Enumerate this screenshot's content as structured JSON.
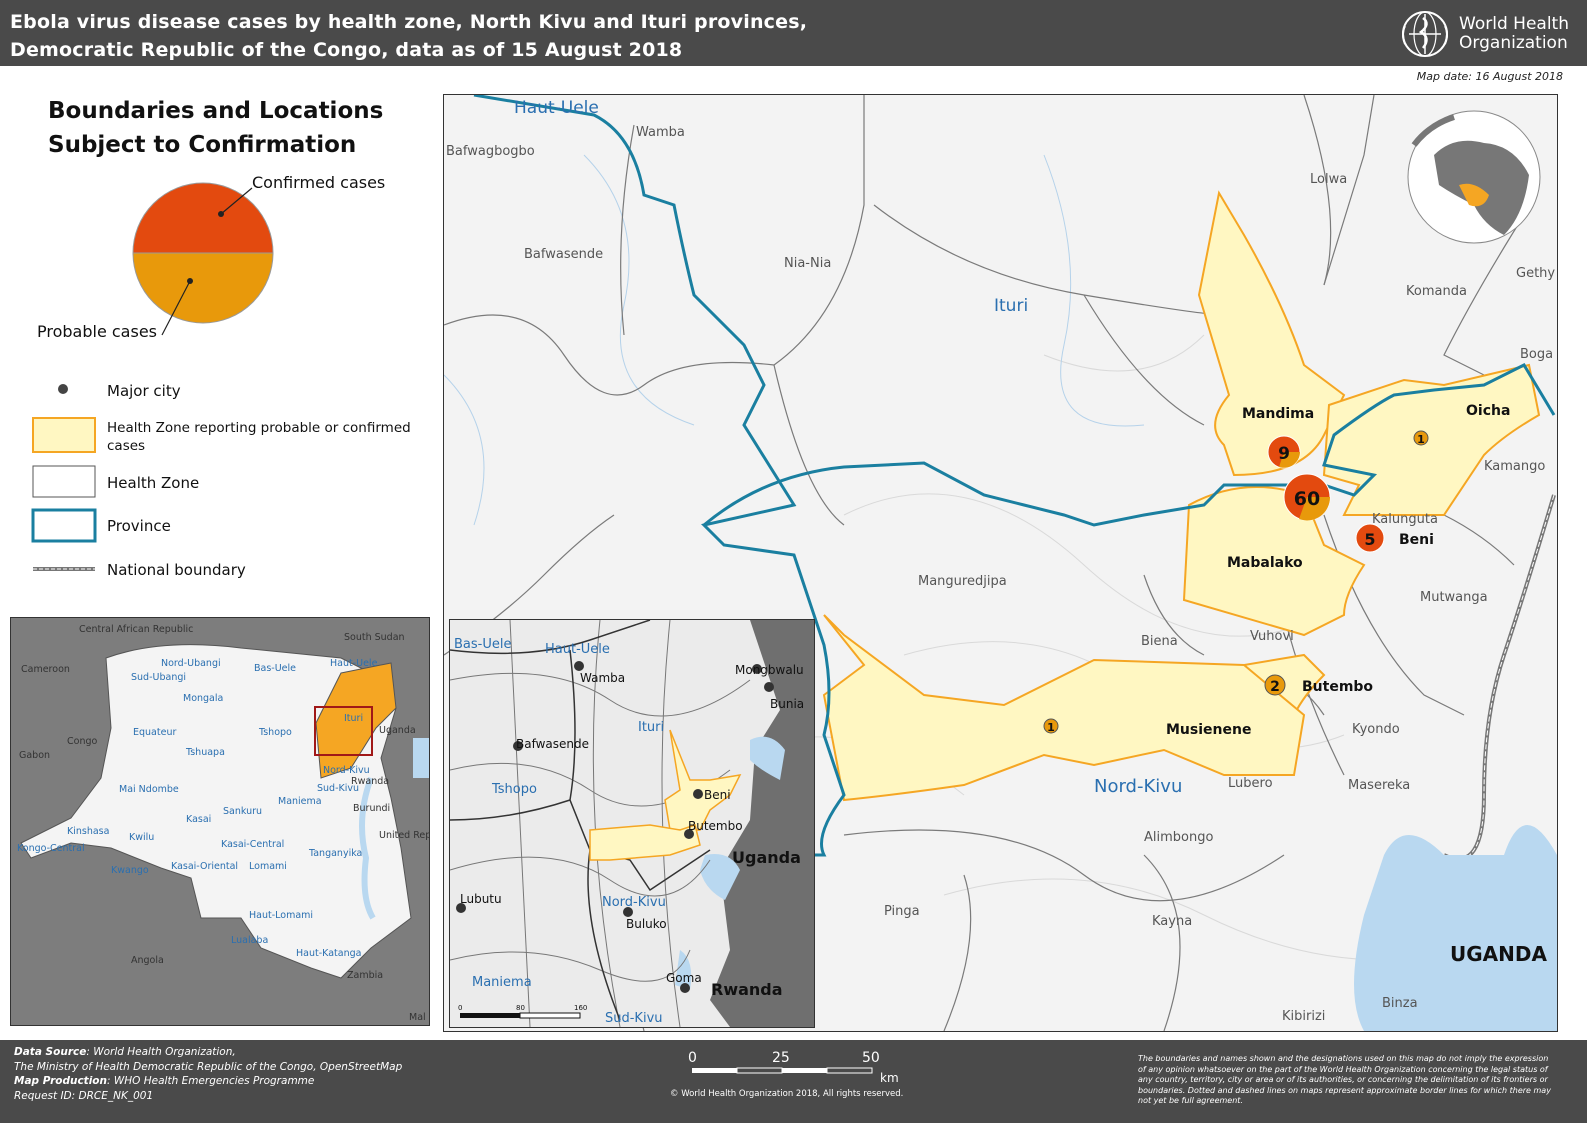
{
  "header": {
    "title_line1": "Ebola virus disease cases by health zone, North Kivu and Ituri provinces,",
    "title_line2": "Democratic Republic of the Congo, data as of 15 August 2018",
    "org_line1": "World Health",
    "org_line2": "Organization"
  },
  "map_date": "Map date: 16 August 2018",
  "legend": {
    "title_line1": "Boundaries and Locations",
    "title_line2": "Subject to Confirmation",
    "confirmed": "Confirmed cases",
    "probable": "Probable cases",
    "major_city": "Major city",
    "hz_reporting": "Health Zone reporting probable or confirmed cases",
    "health_zone": "Health Zone",
    "province": "Province",
    "national_boundary": "National boundary"
  },
  "colors": {
    "confirmed": "#e34a0f",
    "probable": "#e8990b",
    "affected_fill": "#fff7c2",
    "affected_border": "#f5a623",
    "province_line": "#1a7fa0",
    "water": "#b9d8f0"
  },
  "main_map": {
    "provinces": [
      "Haut-Uele",
      "Ituri",
      "Nord-Kivu"
    ],
    "places": [
      "Wamba",
      "Bafwagbogbo",
      "Bafwasende",
      "Nia-Nia",
      "Lolwa",
      "Komanda",
      "Gethy",
      "Boga",
      "Kamango",
      "Kalunguta",
      "Mutwanga",
      "Manguredjipa",
      "Biena",
      "Vuhovi",
      "Kyondo",
      "Masereka",
      "Lubero",
      "Alimbongo",
      "Pinga",
      "Kayna",
      "Kibirizi",
      "Binza"
    ],
    "affected_zones": [
      "Mandima",
      "Oicha",
      "Mabalako",
      "Beni",
      "Butembo",
      "Musienene"
    ],
    "country_label": "UGANDA",
    "case_circles": [
      {
        "zone": "Mandima",
        "label": "9",
        "total": 9
      },
      {
        "zone": "Mabalako",
        "label": "60",
        "total": 60
      },
      {
        "zone": "Beni",
        "label": "5",
        "total": 5
      },
      {
        "zone": "Butembo",
        "label": "2",
        "total": 2
      },
      {
        "zone": "Oicha",
        "label": "1",
        "total": 1
      },
      {
        "zone": "Musienene",
        "label": "1",
        "total": 1
      }
    ]
  },
  "drc_inset": {
    "countries": [
      "Central African Republic",
      "South Sudan",
      "Cameroon",
      "Congo",
      "Gabon",
      "Uganda",
      "Rwanda",
      "Burundi",
      "United Republic of Tanzania",
      "Angola",
      "Zambia",
      "Mal"
    ],
    "provinces": [
      "Nord-Ubangi",
      "Sud-Ubangi",
      "Bas-Uele",
      "Haut-Uele",
      "Mongala",
      "Equateur",
      "Tshuapa",
      "Tshopo",
      "Ituri",
      "Mai Ndombe",
      "Nord-Kivu",
      "Sud-Kivu",
      "Maniema",
      "Kinshasa",
      "Kwilu",
      "Kasai",
      "Sankuru",
      "Kasai-Central",
      "Kongo-Central",
      "Kwango",
      "Kasai-Oriental",
      "Lomami",
      "Tanganyika",
      "Haut-Lomami",
      "Lualaba",
      "Haut-Katanga"
    ]
  },
  "zoom_inset": {
    "provinces": [
      "Bas-Uele",
      "Haut-Uele",
      "Ituri",
      "Tshopo",
      "Nord-Kivu",
      "Maniema",
      "Sud-Kivu"
    ],
    "cities": [
      "Wamba",
      "Mongbwalu",
      "Bunia",
      "Bafwasende",
      "Beni",
      "Butembo",
      "Lubutu",
      "Buluko",
      "Goma"
    ],
    "countries": [
      "Uganda",
      "Rwanda"
    ],
    "scale": [
      "0",
      "80",
      "160"
    ]
  },
  "scale_bar": {
    "ticks": [
      "0",
      "25",
      "50"
    ],
    "unit": "km"
  },
  "footer": {
    "data_source_label": "Data Source",
    "data_source": ": World Health Organization,",
    "data_source_line2": "The Ministry of Health Democratic Republic of the Congo, OpenStreetMap",
    "production_label": "Map Production",
    "production": ": WHO Health Emergencies Programme",
    "request_id": "Request ID: DRCE_NK_001",
    "copyright": "© World Health Organization 2018, All rights reserved.",
    "disclaimer": "The boundaries and names shown and the designations used on this map do not imply the expression of any opinion whatsoever on the part of the World Health Organization concerning the legal status of any country, territory, city or area or of its authorities, or concerning the delimitation of its frontiers or boundaries. Dotted and dashed lines on maps represent approximate border lines for which there may not yet be full agreement."
  }
}
